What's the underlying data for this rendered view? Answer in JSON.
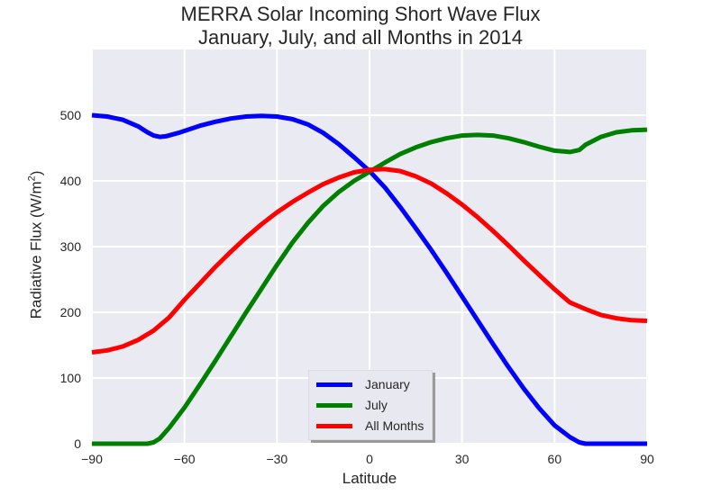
{
  "colors": {
    "background": "#ffffff",
    "plot_bg": "#eaeaf2",
    "grid": "#ffffff",
    "text": "#262626"
  },
  "chart_data": {
    "type": "line",
    "title": "MERRA Solar Incoming Short Wave Flux",
    "subtitle": "January, July, and all Months in 2014",
    "xlabel": "Latitude",
    "ylabel_main": "Radiative Flux (W/m",
    "ylabel_sup": "2",
    "ylabel_close": ")",
    "xlim": [
      -90,
      90
    ],
    "ylim": [
      0,
      600
    ],
    "xticks": [
      -90,
      -60,
      -30,
      0,
      30,
      60,
      90
    ],
    "xtick_labels": [
      "−90",
      "−60",
      "−30",
      "0",
      "30",
      "60",
      "90"
    ],
    "yticks": [
      0,
      100,
      200,
      300,
      400,
      500
    ],
    "ytick_labels": [
      "0",
      "100",
      "200",
      "300",
      "400",
      "500"
    ],
    "grid": true,
    "legend_position": "bottom-center",
    "series": [
      {
        "name": "January",
        "color": "#0000ff",
        "points": [
          [
            -90,
            500
          ],
          [
            -85,
            498
          ],
          [
            -80,
            493
          ],
          [
            -75,
            483
          ],
          [
            -72,
            474
          ],
          [
            -70,
            469
          ],
          [
            -68,
            467
          ],
          [
            -66,
            468
          ],
          [
            -62,
            473
          ],
          [
            -55,
            484
          ],
          [
            -50,
            490
          ],
          [
            -45,
            495
          ],
          [
            -40,
            498
          ],
          [
            -35,
            499
          ],
          [
            -30,
            498
          ],
          [
            -25,
            494
          ],
          [
            -20,
            486
          ],
          [
            -15,
            473
          ],
          [
            -10,
            456
          ],
          [
            -5,
            436
          ],
          [
            0,
            415
          ],
          [
            5,
            390
          ],
          [
            10,
            360
          ],
          [
            15,
            328
          ],
          [
            20,
            295
          ],
          [
            25,
            260
          ],
          [
            30,
            224
          ],
          [
            35,
            188
          ],
          [
            40,
            152
          ],
          [
            45,
            117
          ],
          [
            50,
            84
          ],
          [
            55,
            54
          ],
          [
            60,
            28
          ],
          [
            65,
            10
          ],
          [
            68,
            2
          ],
          [
            70,
            0
          ],
          [
            75,
            0
          ],
          [
            80,
            0
          ],
          [
            85,
            0
          ],
          [
            90,
            0
          ]
        ]
      },
      {
        "name": "July",
        "color": "#008000",
        "points": [
          [
            -90,
            0
          ],
          [
            -85,
            0
          ],
          [
            -80,
            0
          ],
          [
            -75,
            0
          ],
          [
            -72,
            0
          ],
          [
            -70,
            2
          ],
          [
            -68,
            8
          ],
          [
            -65,
            24
          ],
          [
            -60,
            55
          ],
          [
            -55,
            90
          ],
          [
            -50,
            126
          ],
          [
            -45,
            163
          ],
          [
            -40,
            200
          ],
          [
            -35,
            236
          ],
          [
            -30,
            272
          ],
          [
            -25,
            306
          ],
          [
            -20,
            336
          ],
          [
            -15,
            362
          ],
          [
            -10,
            383
          ],
          [
            -5,
            400
          ],
          [
            0,
            414
          ],
          [
            5,
            428
          ],
          [
            10,
            441
          ],
          [
            15,
            451
          ],
          [
            20,
            459
          ],
          [
            25,
            465
          ],
          [
            30,
            469
          ],
          [
            35,
            470
          ],
          [
            40,
            469
          ],
          [
            45,
            465
          ],
          [
            50,
            459
          ],
          [
            55,
            452
          ],
          [
            60,
            446
          ],
          [
            65,
            444
          ],
          [
            68,
            447
          ],
          [
            70,
            455
          ],
          [
            75,
            467
          ],
          [
            80,
            474
          ],
          [
            85,
            477
          ],
          [
            90,
            478
          ]
        ]
      },
      {
        "name": "All Months",
        "color": "#ff0000",
        "points": [
          [
            -90,
            139
          ],
          [
            -85,
            142
          ],
          [
            -80,
            148
          ],
          [
            -75,
            158
          ],
          [
            -70,
            172
          ],
          [
            -65,
            192
          ],
          [
            -60,
            219
          ],
          [
            -55,
            244
          ],
          [
            -50,
            269
          ],
          [
            -45,
            292
          ],
          [
            -40,
            314
          ],
          [
            -35,
            334
          ],
          [
            -30,
            352
          ],
          [
            -25,
            368
          ],
          [
            -20,
            382
          ],
          [
            -15,
            395
          ],
          [
            -10,
            405
          ],
          [
            -5,
            413
          ],
          [
            0,
            417
          ],
          [
            5,
            418
          ],
          [
            10,
            415
          ],
          [
            15,
            407
          ],
          [
            20,
            396
          ],
          [
            25,
            381
          ],
          [
            30,
            364
          ],
          [
            35,
            345
          ],
          [
            40,
            324
          ],
          [
            45,
            302
          ],
          [
            50,
            279
          ],
          [
            55,
            257
          ],
          [
            60,
            235
          ],
          [
            65,
            215
          ],
          [
            70,
            205
          ],
          [
            75,
            196
          ],
          [
            80,
            191
          ],
          [
            85,
            188
          ],
          [
            90,
            187
          ]
        ]
      }
    ]
  }
}
